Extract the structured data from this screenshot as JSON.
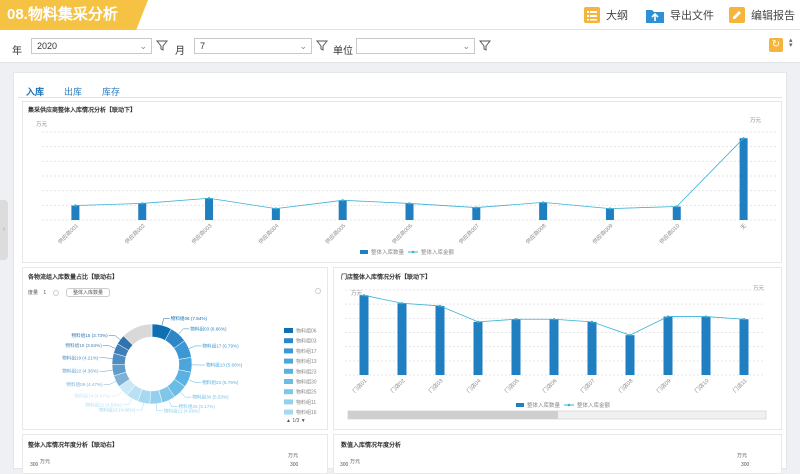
{
  "header": {
    "title": "08.物料集采分析",
    "outline_label": "大纲",
    "export_label": "导出文件",
    "edit_label": "编辑报告"
  },
  "filters": {
    "year_label": "年",
    "year_value": "2020",
    "month_label": "月",
    "month_value": "7",
    "unit_label": "单位",
    "unit_value": ""
  },
  "tabs": [
    "入库",
    "出库",
    "库存"
  ],
  "chart1": {
    "title": "集采供应商整体入库情况分析【联动下】",
    "left_unit": "万元",
    "right_unit": "万元"
  },
  "chart2": {
    "title": "各物流组入库数量占比【联动右】",
    "metric_prefix": "度量",
    "metric_index": "1",
    "metric_select": "整体入库数量",
    "page_indicator": "1/3"
  },
  "chart3": {
    "title": "门店整体入库情况分析【联动下】",
    "left_unit": "万元",
    "right_unit": "万元"
  },
  "chart4": {
    "title": "整体入库情况年度分析【联动右】",
    "left_unit": "万元",
    "right_unit": "万元",
    "axis_left": "300",
    "axis_right": "300"
  },
  "chart5": {
    "title": "数值入库情况年度分析",
    "left_unit": "万元",
    "right_unit": "万元",
    "axis_left": "300",
    "axis_right": "300"
  },
  "chart_data": [
    {
      "type": "bar",
      "title": "集采供应商整体入库情况分析【联动下】",
      "categories": [
        "供应商001",
        "供应商002",
        "供应商003",
        "供应商004",
        "供应商005",
        "供应商006",
        "供应商007",
        "供应商008",
        "供应商009",
        "供应商010",
        "无"
      ],
      "series": [
        {
          "name": "整体入库数量",
          "values": [
            14,
            16,
            21,
            11,
            19,
            16,
            12,
            17,
            11,
            13,
            79
          ],
          "color": "#1f7fc1"
        },
        {
          "name": "整体入库金额",
          "values": [
            14,
            16,
            21,
            11,
            19,
            16,
            12,
            17,
            11,
            13,
            79
          ],
          "color": "#3ab0d6",
          "kind": "line"
        }
      ]
    },
    {
      "type": "pie",
      "title": "各物流组入库数量占比【联动右】",
      "slices": [
        {
          "label": "物料组06 (7.54%)",
          "value": 7.54,
          "color": "#0f6fb3"
        },
        {
          "label": "物料组03 (6.66%)",
          "value": 6.66,
          "color": "#2d86c8"
        },
        {
          "label": "物料组17 (6.79%)",
          "value": 6.79,
          "color": "#3b98d4"
        },
        {
          "label": "物料组13 (5.66%)",
          "value": 5.66,
          "color": "#4aa6dc"
        },
        {
          "label": "物料组23 (5.79%)",
          "value": 5.79,
          "color": "#5ab2e2"
        },
        {
          "label": "物料组30 (5.53%)",
          "value": 5.53,
          "color": "#6cbde6"
        },
        {
          "label": "物料组25 (5.17%)",
          "value": 5.17,
          "color": "#7fc7ea"
        },
        {
          "label": "物料组11 (4.69%)",
          "value": 4.69,
          "color": "#92d0ee"
        },
        {
          "label": "物料组16 (4.66%)",
          "value": 4.66,
          "color": "#a6d9f1"
        },
        {
          "label": "物料组21 (4.59%)",
          "value": 4.59,
          "color": "#b9e1f4"
        },
        {
          "label": "物料组14 (4.47%)",
          "value": 4.47,
          "color": "#cbe8f6"
        },
        {
          "label": "物料组09 (4.47%)",
          "value": 4.47,
          "color": "#7fb0d6"
        },
        {
          "label": "物料组22 (4.36%)",
          "value": 4.36,
          "color": "#5f9dcc"
        },
        {
          "label": "物料组19 (4.21%)",
          "value": 4.21,
          "color": "#4d8dc2"
        },
        {
          "label": "物料组10 (3.84%)",
          "value": 3.84,
          "color": "#3f7fb8"
        },
        {
          "label": "物料组15 (3.73%)",
          "value": 3.73,
          "color": "#2f73ae"
        },
        {
          "label": "其他",
          "value": 11.84,
          "color": "#d9d9d9"
        }
      ],
      "legend": [
        "物料组06",
        "物料组03",
        "物料组17",
        "物料组13",
        "物料组23",
        "物料组30",
        "物料组25",
        "物料组11",
        "物料组16"
      ]
    },
    {
      "type": "bar",
      "title": "门店整体入库情况分析【联动下】",
      "categories": [
        "门店01",
        "门店02",
        "门店03",
        "门店04",
        "门店05",
        "门店06",
        "门店07",
        "门店08",
        "门店09",
        "门店10",
        "门店11"
      ],
      "series": [
        {
          "name": "整体入库数量",
          "values": [
            30,
            27,
            26,
            20,
            21,
            21,
            20,
            15,
            22,
            22,
            21
          ],
          "color": "#1f7fc1"
        },
        {
          "name": "整体入库金额",
          "values": [
            30,
            27,
            26,
            20,
            21,
            21,
            20,
            15,
            22,
            22,
            21
          ],
          "color": "#3ab0d6",
          "kind": "line"
        }
      ]
    }
  ]
}
